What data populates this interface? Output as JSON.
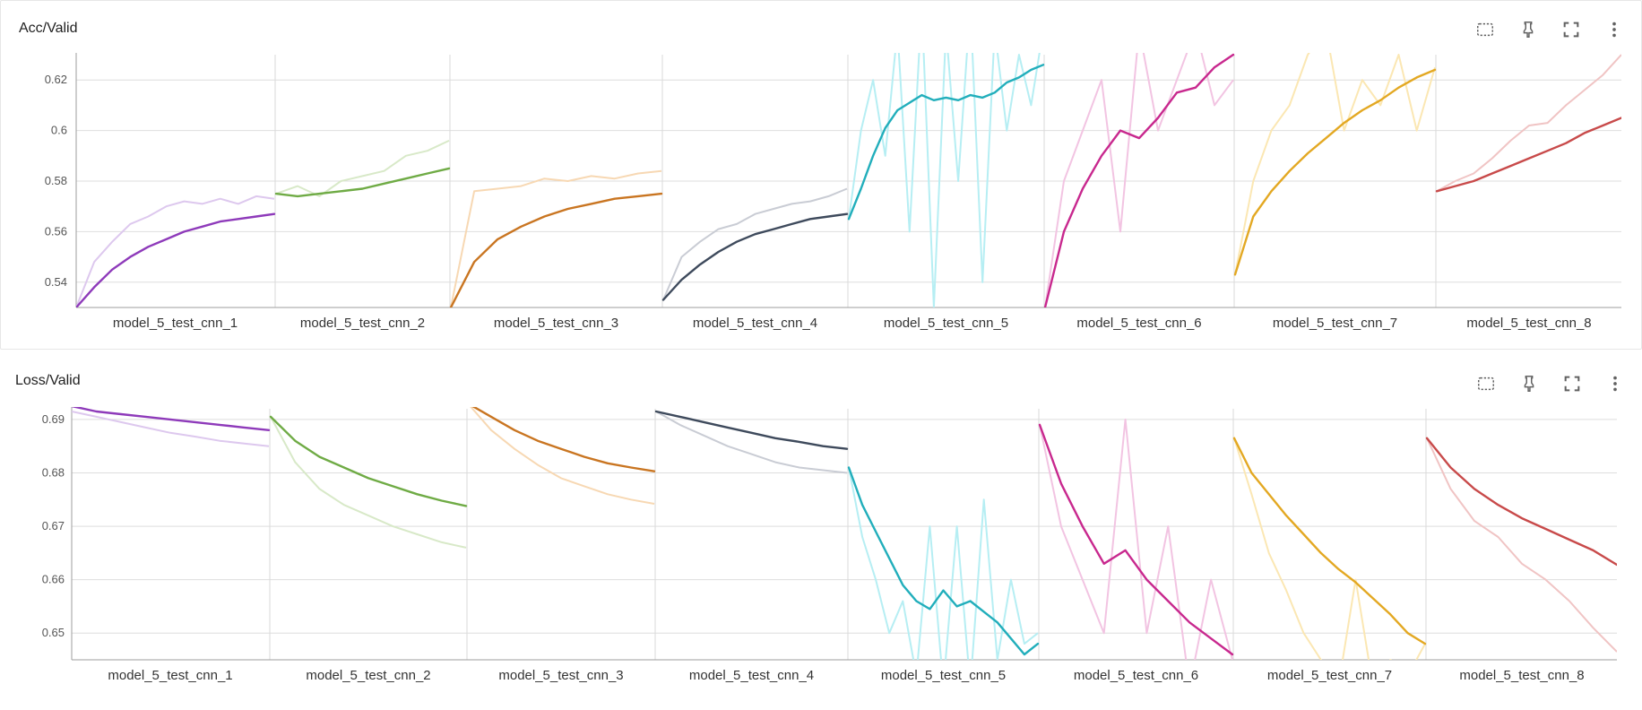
{
  "toolbar_icons": [
    "fit-to-data-icon",
    "pin-icon",
    "fullscreen-icon",
    "more-vert-icon"
  ],
  "chart_data": [
    {
      "type": "line",
      "title": "Acc/Valid",
      "ylim": [
        0.53,
        0.63
      ],
      "y_ticks": [
        0.54,
        0.56,
        0.58,
        0.6,
        0.62
      ],
      "y_tick_labels": [
        "0.54",
        "0.56",
        "0.58",
        "0.6",
        "0.62"
      ],
      "grid": true,
      "series": [
        {
          "name": "model_5_test_cnn_1",
          "color": "#8e3aba",
          "raw_color": "#ddc8ee",
          "values": [
            0.53,
            0.538,
            0.545,
            0.55,
            0.554,
            0.557,
            0.56,
            0.562,
            0.564,
            0.565,
            0.566,
            0.567
          ],
          "raw": [
            0.53,
            0.548,
            0.556,
            0.563,
            0.566,
            0.57,
            0.572,
            0.571,
            0.573,
            0.571,
            0.574,
            0.573
          ]
        },
        {
          "name": "model_5_test_cnn_2",
          "color": "#6fab45",
          "raw_color": "#d8e9c8",
          "values": [
            0.575,
            0.574,
            0.575,
            0.576,
            0.577,
            0.579,
            0.581,
            0.583,
            0.585
          ],
          "raw": [
            0.575,
            0.578,
            0.574,
            0.58,
            0.582,
            0.584,
            0.59,
            0.592,
            0.596
          ]
        },
        {
          "name": "model_5_test_cnn_3",
          "color": "#c97521",
          "raw_color": "#f7d8b3",
          "values": [
            0.53,
            0.548,
            0.557,
            0.562,
            0.566,
            0.569,
            0.571,
            0.573,
            0.574,
            0.575
          ],
          "raw": [
            0.53,
            0.576,
            0.577,
            0.578,
            0.581,
            0.58,
            0.582,
            0.581,
            0.583,
            0.584
          ]
        },
        {
          "name": "model_5_test_cnn_4",
          "color": "#3e4a5c",
          "raw_color": "#c9ccd4",
          "values": [
            0.533,
            0.541,
            0.547,
            0.552,
            0.556,
            0.559,
            0.561,
            0.563,
            0.565,
            0.566,
            0.567
          ],
          "raw": [
            0.533,
            0.55,
            0.556,
            0.561,
            0.563,
            0.567,
            0.569,
            0.571,
            0.572,
            0.574,
            0.577
          ]
        },
        {
          "name": "model_5_test_cnn_5",
          "color": "#21aebb",
          "raw_color": "#b6eef3",
          "values": [
            0.565,
            0.577,
            0.59,
            0.601,
            0.608,
            0.611,
            0.614,
            0.612,
            0.613,
            0.612,
            0.614,
            0.613,
            0.615,
            0.619,
            0.621,
            0.624,
            0.626
          ],
          "raw": [
            0.565,
            0.6,
            0.62,
            0.59,
            0.64,
            0.56,
            0.65,
            0.53,
            0.64,
            0.58,
            0.65,
            0.54,
            0.64,
            0.6,
            0.63,
            0.61,
            0.64
          ]
        },
        {
          "name": "model_5_test_cnn_6",
          "color": "#c8288e",
          "raw_color": "#f2c4e2",
          "values": [
            0.53,
            0.56,
            0.577,
            0.59,
            0.6,
            0.597,
            0.605,
            0.615,
            0.617,
            0.625,
            0.63
          ],
          "raw": [
            0.53,
            0.58,
            0.6,
            0.62,
            0.56,
            0.64,
            0.6,
            0.62,
            0.64,
            0.61,
            0.62
          ]
        },
        {
          "name": "model_5_test_cnn_7",
          "color": "#e3a822",
          "raw_color": "#fbe7b3",
          "values": [
            0.543,
            0.566,
            0.576,
            0.584,
            0.591,
            0.597,
            0.603,
            0.608,
            0.612,
            0.617,
            0.621,
            0.624
          ],
          "raw": [
            0.543,
            0.58,
            0.6,
            0.61,
            0.63,
            0.64,
            0.6,
            0.62,
            0.61,
            0.63,
            0.6,
            0.625
          ]
        },
        {
          "name": "model_5_test_cnn_8",
          "color": "#c84a4a",
          "raw_color": "#f0c4c4",
          "values": [
            0.576,
            0.578,
            0.58,
            0.583,
            0.586,
            0.589,
            0.592,
            0.595,
            0.599,
            0.602,
            0.605
          ],
          "raw": [
            0.576,
            0.58,
            0.583,
            0.589,
            0.596,
            0.602,
            0.603,
            0.61,
            0.616,
            0.622,
            0.63
          ]
        }
      ]
    },
    {
      "type": "line",
      "title": "Loss/Valid",
      "ylim": [
        0.645,
        0.692
      ],
      "y_ticks": [
        0.65,
        0.66,
        0.67,
        0.68,
        0.69
      ],
      "y_tick_labels": [
        "0.65",
        "0.66",
        "0.67",
        "0.68",
        "0.69"
      ],
      "grid": true,
      "series": [
        {
          "name": "model_5_test_cnn_1",
          "color": "#8e3aba",
          "raw_color": "#ddc8ee",
          "values": [
            0.6925,
            0.6915,
            0.691,
            0.6905,
            0.69,
            0.6895,
            0.689,
            0.6885,
            0.688
          ],
          "raw": [
            0.6915,
            0.6905,
            0.6895,
            0.6885,
            0.6875,
            0.6868,
            0.686,
            0.6855,
            0.685
          ]
        },
        {
          "name": "model_5_test_cnn_2",
          "color": "#6fab45",
          "raw_color": "#d8e9c8",
          "values": [
            0.6905,
            0.686,
            0.683,
            0.681,
            0.679,
            0.6775,
            0.676,
            0.6748,
            0.6738
          ],
          "raw": [
            0.6905,
            0.682,
            0.677,
            0.674,
            0.672,
            0.67,
            0.6685,
            0.667,
            0.666
          ]
        },
        {
          "name": "model_5_test_cnn_3",
          "color": "#c97521",
          "raw_color": "#f7d8b3",
          "values": [
            0.693,
            0.6905,
            0.688,
            0.686,
            0.6845,
            0.683,
            0.6818,
            0.681,
            0.6803
          ],
          "raw": [
            0.693,
            0.688,
            0.6845,
            0.6815,
            0.679,
            0.6775,
            0.676,
            0.675,
            0.6742
          ]
        },
        {
          "name": "model_5_test_cnn_4",
          "color": "#3e4a5c",
          "raw_color": "#c9ccd4",
          "values": [
            0.6915,
            0.6905,
            0.6895,
            0.6885,
            0.6875,
            0.6865,
            0.6858,
            0.685,
            0.6845
          ],
          "raw": [
            0.6915,
            0.689,
            0.687,
            0.685,
            0.6835,
            0.682,
            0.681,
            0.6805,
            0.68
          ]
        },
        {
          "name": "model_5_test_cnn_5",
          "color": "#21aebb",
          "raw_color": "#b6eef3",
          "values": [
            0.681,
            0.674,
            0.669,
            0.664,
            0.659,
            0.656,
            0.6545,
            0.658,
            0.655,
            0.656,
            0.654,
            0.652,
            0.649,
            0.646,
            0.648
          ],
          "raw": [
            0.681,
            0.668,
            0.66,
            0.65,
            0.656,
            0.642,
            0.67,
            0.64,
            0.67,
            0.64,
            0.675,
            0.645,
            0.66,
            0.648,
            0.65
          ]
        },
        {
          "name": "model_5_test_cnn_6",
          "color": "#c8288e",
          "raw_color": "#f2c4e2",
          "values": [
            0.689,
            0.678,
            0.67,
            0.663,
            0.6655,
            0.66,
            0.656,
            0.652,
            0.649,
            0.646
          ],
          "raw": [
            0.689,
            0.67,
            0.66,
            0.65,
            0.69,
            0.65,
            0.67,
            0.64,
            0.66,
            0.645
          ]
        },
        {
          "name": "model_5_test_cnn_7",
          "color": "#e3a822",
          "raw_color": "#fbe7b3",
          "values": [
            0.6865,
            0.68,
            0.676,
            0.672,
            0.6685,
            0.665,
            0.662,
            0.6595,
            0.6565,
            0.6535,
            0.65,
            0.648
          ],
          "raw": [
            0.6865,
            0.676,
            0.665,
            0.658,
            0.65,
            0.645,
            0.64,
            0.66,
            0.64,
            0.645,
            0.642,
            0.648
          ]
        },
        {
          "name": "model_5_test_cnn_8",
          "color": "#c84a4a",
          "raw_color": "#f0c4c4",
          "values": [
            0.6865,
            0.681,
            0.677,
            0.674,
            0.6715,
            0.6695,
            0.6675,
            0.6655,
            0.6628
          ],
          "raw": [
            0.6865,
            0.677,
            0.671,
            0.668,
            0.663,
            0.66,
            0.656,
            0.651,
            0.6465
          ]
        }
      ]
    }
  ]
}
